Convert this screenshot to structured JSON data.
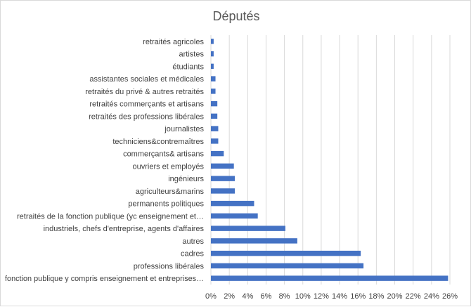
{
  "chart_data": {
    "type": "bar",
    "orientation": "horizontal",
    "title": "Députés",
    "categories": [
      "retraités agricoles",
      "artistes",
      "étudiants",
      "assistantes sociales et médicales",
      "retraités du privé & autres retraités",
      "retraités commerçants et artisans",
      "retraités des professions libérales",
      "journalistes",
      "techniciens&contremaîtres",
      "commerçants& artisans",
      "ouvriers et employés",
      "ingénieurs",
      "agriculteurs&marins",
      "permanents politiques",
      "retraités de la fonction publique (yc enseignement et…",
      "industriels, chefs d'entreprise, agents d'affaires",
      "autres",
      "cadres",
      "professions libérales",
      "fonction publique y compris enseignement et entreprises…"
    ],
    "values": [
      0.3,
      0.3,
      0.3,
      0.5,
      0.5,
      0.7,
      0.7,
      0.8,
      0.8,
      1.4,
      2.5,
      2.6,
      2.6,
      4.7,
      5.1,
      8.1,
      9.4,
      16.3,
      16.6,
      25.8
    ],
    "xlim": [
      0,
      26
    ],
    "x_ticks": [
      "0%",
      "2%",
      "4%",
      "6%",
      "8%",
      "10%",
      "12%",
      "14%",
      "16%",
      "18%",
      "20%",
      "22%",
      "24%",
      "26%"
    ],
    "xlabel": "",
    "ylabel": "",
    "grid": "vertical",
    "legend": "none",
    "bar_color": "#4472c4"
  }
}
